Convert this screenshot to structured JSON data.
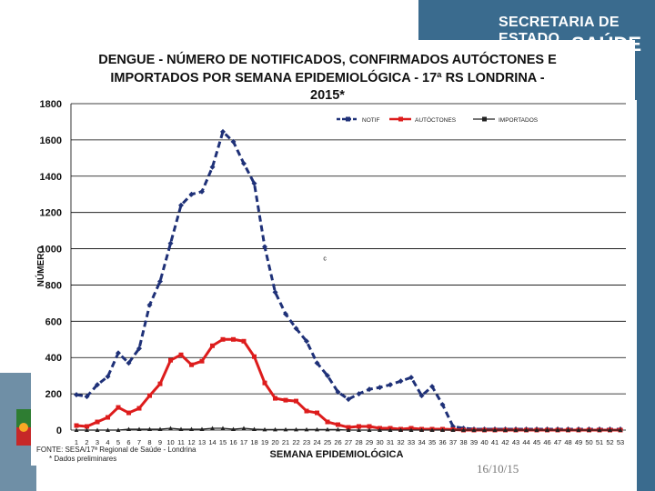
{
  "header": {
    "org_line1": "SECRETARIA DE ESTADO",
    "org_line2": "SAÚDE"
  },
  "footer": {
    "source": "FONTE: SESA/17ª Regional de Saúde - Londrina",
    "note": "* Dados preliminares",
    "date": "16/10/15"
  },
  "colors": {
    "notif": "#1f3178",
    "autoctones": "#dd1c1c",
    "importados": "#222222",
    "header_bg": "#3a6b8e"
  },
  "chart_data": {
    "type": "line",
    "title_lines": [
      "DENGUE - NÚMERO DE NOTIFICADOS, CONFIRMADOS AUTÓCTONES E",
      "IMPORTADOS POR SEMANA EPIDEMIOLÓGICA - 17ª RS LONDRINA -",
      "2015*"
    ],
    "xlabel": "SEMANA EPIDEMIOLÓGICA",
    "ylabel": "NÚMERO",
    "ylim": [
      0,
      1800
    ],
    "yticks": [
      0,
      200,
      400,
      600,
      800,
      1000,
      1200,
      1400,
      1600,
      1800
    ],
    "grid": true,
    "legend_position": "top-right",
    "annotation": "c",
    "categories": [
      "1",
      "2",
      "3",
      "4",
      "5",
      "6",
      "7",
      "8",
      "9",
      "10",
      "11",
      "12",
      "13",
      "14",
      "15",
      "16",
      "17",
      "18",
      "19",
      "20",
      "21",
      "22",
      "23",
      "24",
      "25",
      "26",
      "27",
      "28",
      "29",
      "30",
      "31",
      "32",
      "33",
      "34",
      "35",
      "36",
      "37",
      "38",
      "39",
      "40",
      "41",
      "42",
      "43",
      "44",
      "45",
      "46",
      "47",
      "48",
      "49",
      "50",
      "51",
      "52",
      "53"
    ],
    "series": [
      {
        "name": "NOTIF",
        "values": [
          195,
          185,
          250,
          295,
          425,
          370,
          450,
          690,
          820,
          1030,
          1240,
          1300,
          1315,
          1450,
          1645,
          1590,
          1470,
          1360,
          1010,
          760,
          640,
          560,
          490,
          370,
          300,
          210,
          170,
          200,
          225,
          235,
          250,
          270,
          290,
          190,
          240,
          140,
          20,
          10,
          5,
          5,
          5,
          5,
          5,
          5,
          5,
          5,
          5,
          5,
          5,
          5,
          5,
          5,
          5
        ]
      },
      {
        "name": "AUTÓCTONES",
        "values": [
          25,
          20,
          45,
          70,
          125,
          95,
          120,
          190,
          255,
          385,
          415,
          360,
          380,
          465,
          500,
          500,
          490,
          405,
          260,
          175,
          165,
          160,
          105,
          95,
          45,
          30,
          15,
          20,
          20,
          10,
          10,
          5,
          10,
          5,
          5,
          5,
          3,
          0,
          0,
          0,
          0,
          0,
          0,
          0,
          0,
          0,
          0,
          0,
          0,
          0,
          0,
          0,
          0
        ]
      },
      {
        "name": "IMPORTADOS",
        "values": [
          0,
          0,
          0,
          0,
          0,
          5,
          5,
          5,
          5,
          10,
          5,
          5,
          5,
          10,
          10,
          5,
          10,
          5,
          3,
          3,
          3,
          3,
          3,
          3,
          3,
          3,
          0,
          0,
          0,
          0,
          0,
          0,
          0,
          0,
          0,
          0,
          0,
          0,
          0,
          0,
          0,
          0,
          0,
          0,
          0,
          0,
          0,
          0,
          0,
          0,
          0,
          0,
          0
        ]
      }
    ]
  }
}
